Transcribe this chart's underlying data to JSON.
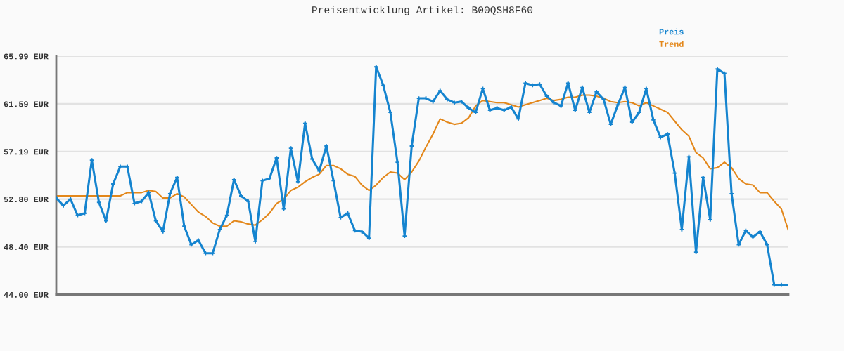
{
  "chart_data": {
    "type": "line",
    "title": "Preisentwicklung Artikel: B00QSH8F60",
    "categories": [
      null,
      null,
      null,
      null,
      null,
      null,
      null,
      null,
      null,
      null,
      null,
      null,
      null,
      null,
      null,
      null,
      null,
      null,
      null,
      null,
      null,
      null,
      null,
      null,
      null,
      null,
      null,
      null,
      null,
      null,
      null,
      null,
      null,
      null,
      null,
      null,
      null,
      null,
      null,
      null,
      null,
      null,
      null,
      null,
      null,
      null,
      null,
      null,
      null,
      null,
      null,
      null,
      null,
      null,
      null,
      null,
      null,
      null,
      null,
      null,
      null,
      null,
      null,
      null,
      null,
      null,
      null,
      null,
      null,
      null,
      null,
      null,
      null,
      null,
      null,
      null,
      null,
      null,
      null,
      null,
      null,
      null,
      null,
      null,
      null,
      null,
      null,
      null,
      null,
      null,
      null,
      null,
      null,
      null,
      null,
      null,
      null,
      null,
      null,
      null,
      null,
      null,
      null,
      null
    ],
    "series": [
      {
        "name": "Preis",
        "color": "#1584cf",
        "marker": "cross",
        "values": [
          52.9,
          52.2,
          52.8,
          51.3,
          51.5,
          56.4,
          52.5,
          50.8,
          54.2,
          55.8,
          55.8,
          52.4,
          52.6,
          53.4,
          50.8,
          49.8,
          53.3,
          54.8,
          50.3,
          48.6,
          49.0,
          47.8,
          47.8,
          50.0,
          51.3,
          54.6,
          53.1,
          52.6,
          48.9,
          54.5,
          54.7,
          56.6,
          51.9,
          57.5,
          54.4,
          59.8,
          56.5,
          55.4,
          57.7,
          54.5,
          51.1,
          51.5,
          49.9,
          49.8,
          49.2,
          65.0,
          63.3,
          60.8,
          56.2,
          49.4,
          57.7,
          62.1,
          62.1,
          61.8,
          62.8,
          62.0,
          61.7,
          61.8,
          61.2,
          60.8,
          63.0,
          61.0,
          61.2,
          61.0,
          61.3,
          60.2,
          63.5,
          63.3,
          63.4,
          62.3,
          61.7,
          61.4,
          63.5,
          61.0,
          63.1,
          60.8,
          62.7,
          62.0,
          59.7,
          61.5,
          63.1,
          59.9,
          60.8,
          63.0,
          60.1,
          58.5,
          58.8,
          55.2,
          50.0,
          56.7,
          47.9,
          54.8,
          50.9,
          64.8,
          64.4,
          53.3,
          48.6,
          49.9,
          49.3,
          49.8,
          48.6,
          44.9,
          44.9,
          44.9
        ]
      },
      {
        "name": "Trend",
        "color": "#e3871a",
        "values": [
          53.1,
          53.1,
          53.1,
          53.1,
          53.1,
          53.1,
          53.1,
          53.1,
          53.1,
          53.1,
          53.4,
          53.4,
          53.4,
          53.6,
          53.5,
          52.9,
          52.9,
          53.3,
          53.0,
          52.3,
          51.6,
          51.2,
          50.6,
          50.3,
          50.3,
          50.8,
          50.7,
          50.5,
          50.4,
          50.9,
          51.5,
          52.4,
          52.8,
          53.6,
          53.9,
          54.4,
          54.8,
          55.1,
          55.9,
          55.9,
          55.6,
          55.1,
          54.9,
          54.1,
          53.6,
          54.1,
          54.8,
          55.3,
          55.2,
          54.6,
          55.3,
          56.3,
          57.6,
          58.8,
          60.2,
          59.9,
          59.7,
          59.8,
          60.3,
          61.4,
          61.9,
          61.8,
          61.7,
          61.7,
          61.5,
          61.3,
          61.5,
          61.7,
          61.9,
          62.1,
          61.9,
          62.0,
          62.2,
          62.2,
          62.4,
          62.4,
          62.3,
          62.1,
          61.8,
          61.7,
          61.8,
          61.7,
          61.4,
          61.7,
          61.4,
          61.1,
          60.8,
          60.0,
          59.2,
          58.6,
          57.1,
          56.6,
          55.6,
          55.7,
          56.2,
          55.7,
          54.7,
          54.2,
          54.1,
          53.4,
          53.4,
          52.6,
          51.9,
          49.9
        ]
      }
    ],
    "ylim": [
      44.0,
      65.99
    ],
    "yticks": [
      {
        "value": 44.0,
        "label": "44.00 EUR"
      },
      {
        "value": 48.4,
        "label": "48.40 EUR"
      },
      {
        "value": 52.8,
        "label": "52.80 EUR"
      },
      {
        "value": 57.19,
        "label": "57.19 EUR"
      },
      {
        "value": 61.59,
        "label": "61.59 EUR"
      },
      {
        "value": 65.99,
        "label": "65.99 EUR"
      }
    ],
    "grid": "y",
    "legend": "top right",
    "tick_labels": "y",
    "line_style": "solid"
  }
}
